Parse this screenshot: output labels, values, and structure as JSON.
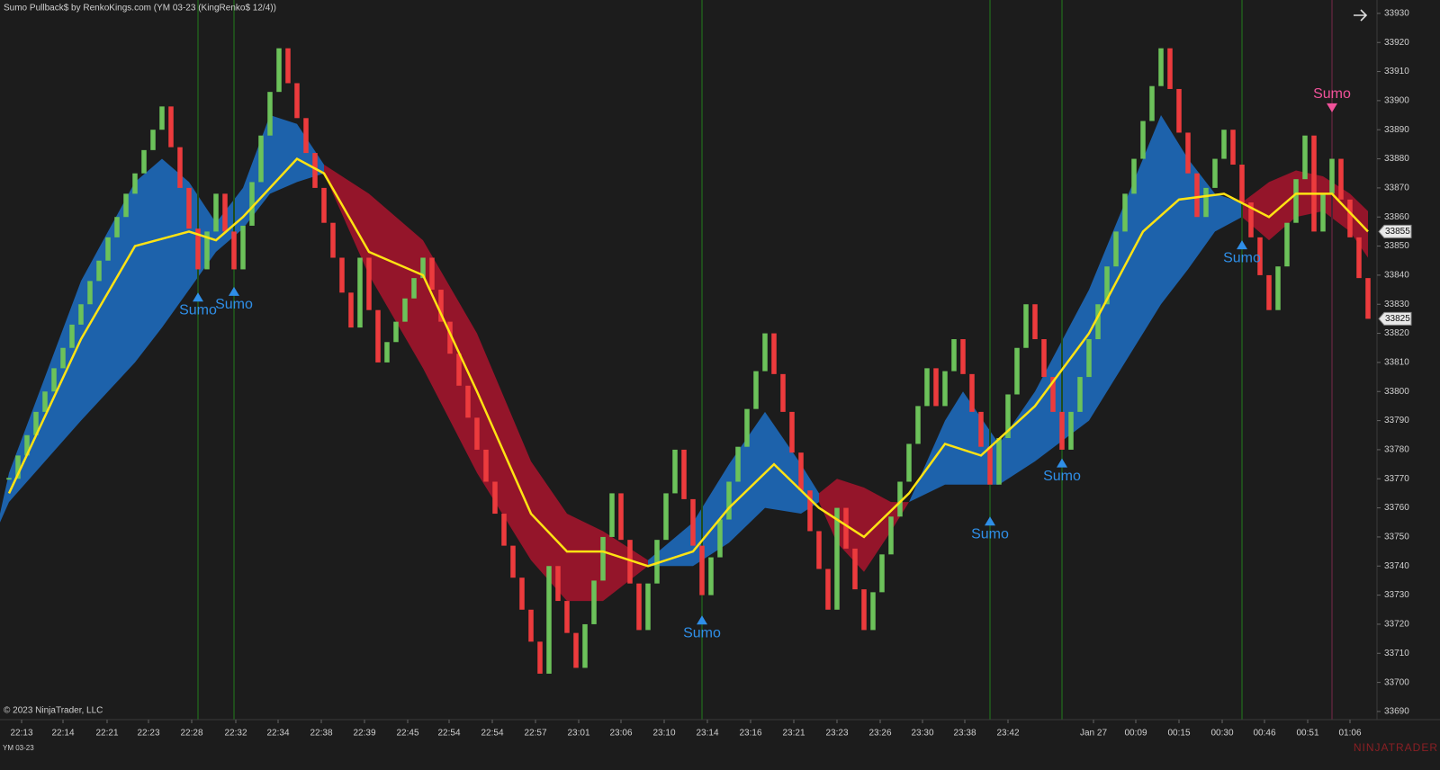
{
  "chart_data": {
    "type": "renko",
    "title": "Sumo Pullback$ by RenkoKings.com (YM 03-23 (KingRenko$ 12/4))",
    "copyright": "© 2023 NinjaTrader, LLC",
    "instrument": "YM 03-23",
    "brand": "NINJATRADER",
    "up_color": "#6cc25a",
    "down_color": "#ec3b3d",
    "xlim": [
      -1,
      152
    ],
    "ylim": [
      33687.2,
      33934.6
    ],
    "yticks": [
      33690,
      33700,
      33710,
      33720,
      33730,
      33740,
      33750,
      33760,
      33770,
      33780,
      33790,
      33800,
      33810,
      33820,
      33830,
      33840,
      33850,
      33860,
      33870,
      33880,
      33890,
      33900,
      33910,
      33920,
      33930
    ],
    "xticks": [
      {
        "value": 1.4,
        "label": "22:13"
      },
      {
        "value": 6,
        "label": "22:14"
      },
      {
        "value": 10.9,
        "label": "22:21"
      },
      {
        "value": 15.5,
        "label": "22:23"
      },
      {
        "value": 20.3,
        "label": "22:28"
      },
      {
        "value": 25.2,
        "label": "22:32"
      },
      {
        "value": 29.9,
        "label": "22:34"
      },
      {
        "value": 34.7,
        "label": "22:38"
      },
      {
        "value": 39.5,
        "label": "22:39"
      },
      {
        "value": 44.3,
        "label": "22:45"
      },
      {
        "value": 48.9,
        "label": "22:54"
      },
      {
        "value": 53.7,
        "label": "22:54"
      },
      {
        "value": 58.5,
        "label": "22:57"
      },
      {
        "value": 63.3,
        "label": "23:01"
      },
      {
        "value": 68,
        "label": "23:06"
      },
      {
        "value": 72.8,
        "label": "23:10"
      },
      {
        "value": 77.6,
        "label": "23:14"
      },
      {
        "value": 82.4,
        "label": "23:16"
      },
      {
        "value": 87.2,
        "label": "23:21"
      },
      {
        "value": 92,
        "label": "23:23"
      },
      {
        "value": 96.8,
        "label": "23:26"
      },
      {
        "value": 101.5,
        "label": "23:30"
      },
      {
        "value": 106.2,
        "label": "23:38"
      },
      {
        "value": 111,
        "label": "23:42"
      },
      {
        "value": 120.5,
        "label": "Jan 27"
      },
      {
        "value": 125.2,
        "label": "00:09"
      },
      {
        "value": 130,
        "label": "00:15"
      },
      {
        "value": 134.8,
        "label": "00:30"
      },
      {
        "value": 139.5,
        "label": "00:46"
      },
      {
        "value": 144.3,
        "label": "00:51"
      },
      {
        "value": 149,
        "label": "01:06"
      }
    ],
    "close": [
      33770,
      33778,
      33785,
      33793,
      33800,
      33808,
      33815,
      33823,
      33830,
      33838,
      33845,
      33853,
      33860,
      33868,
      33875,
      33883,
      33890,
      33898,
      33884,
      33870,
      33856,
      33842,
      33855,
      33868,
      33855,
      33842,
      33857,
      33872,
      33888,
      33903,
      33918,
      33906,
      33894,
      33882,
      33870,
      33858,
      33846,
      33834,
      33822,
      33846,
      33828,
      33810,
      33817,
      33824,
      33832,
      33839,
      33846,
      33835,
      33824,
      33813,
      33802,
      33791,
      33780,
      33769,
      33758,
      33747,
      33736,
      33725,
      33714,
      33703,
      33740,
      33728,
      33717,
      33705,
      33720,
      33735,
      33750,
      33765,
      33749,
      33734,
      33718,
      33734,
      33749,
      33765,
      33780,
      33763,
      33747,
      33730,
      33743,
      33756,
      33769,
      33781,
      33794,
      33807,
      33820,
      33806,
      33793,
      33779,
      33766,
      33752,
      33739,
      33725,
      33760,
      33746,
      33732,
      33718,
      33731,
      33744,
      33757,
      33769,
      33782,
      33795,
      33808,
      33795,
      33807,
      33818,
      33806,
      33793,
      33781,
      33768,
      33784,
      33799,
      33815,
      33830,
      33818,
      33805,
      33793,
      33780,
      33793,
      33805,
      33818,
      33830,
      33843,
      33855,
      33868,
      33880,
      33893,
      33905,
      33918,
      33904,
      33889,
      33875,
      33860,
      33870,
      33880,
      33890,
      33878,
      33865,
      33853,
      33840,
      33828,
      33843,
      33858,
      33873,
      33888,
      33855,
      33868,
      33880,
      33866,
      33853,
      33839,
      33825
    ],
    "ma": {
      "color": "#ffe313",
      "x": [
        0,
        8,
        14,
        20,
        23,
        26,
        32,
        35,
        40,
        46,
        52,
        58,
        62,
        66,
        71,
        76,
        80,
        85,
        90,
        95,
        100,
        104,
        108,
        114,
        120,
        126,
        130,
        135,
        140,
        143,
        147,
        151
      ],
      "values": [
        33765,
        33818,
        33850,
        33855,
        33852,
        33860,
        33880,
        33875,
        33848,
        33840,
        33800,
        33758,
        33745,
        33745,
        33740,
        33745,
        33760,
        33775,
        33760,
        33750,
        33765,
        33782,
        33778,
        33795,
        33820,
        33855,
        33866,
        33868,
        33860,
        33868,
        33868,
        33855
      ]
    },
    "bands": [
      {
        "color": "#1d62ab",
        "x": [
          -1,
          0,
          8,
          14,
          17,
          20,
          23,
          26,
          29,
          32,
          35
        ],
        "upper": [
          33758,
          33772,
          33838,
          33872,
          33880,
          33872,
          33858,
          33870,
          33895,
          33892,
          33878
        ],
        "lower": [
          33755,
          33762,
          33790,
          33810,
          33822,
          33835,
          33848,
          33856,
          33868,
          33872,
          33875
        ]
      },
      {
        "color": "#94152a",
        "x": [
          35,
          40,
          46,
          52,
          58,
          62,
          66,
          71
        ],
        "upper": [
          33878,
          33868,
          33852,
          33820,
          33776,
          33758,
          33752,
          33742
        ],
        "lower": [
          33875,
          33840,
          33808,
          33772,
          33742,
          33728,
          33728,
          33740
        ]
      },
      {
        "color": "#1d62ab",
        "x": [
          71,
          76,
          80,
          84,
          88,
          90
        ],
        "upper": [
          33742,
          33755,
          33775,
          33793,
          33775,
          33765
        ],
        "lower": [
          33740,
          33740,
          33748,
          33760,
          33758,
          33762
        ]
      },
      {
        "color": "#94152a",
        "x": [
          90,
          92,
          95,
          98,
          100
        ],
        "upper": [
          33765,
          33770,
          33767,
          33762,
          33762
        ],
        "lower": [
          33762,
          33748,
          33738,
          33752,
          33762
        ]
      },
      {
        "color": "#1d62ab",
        "x": [
          100,
          104,
          106,
          110,
          114,
          120,
          126,
          128,
          131,
          134,
          137
        ],
        "upper": [
          33762,
          33790,
          33800,
          33782,
          33800,
          33835,
          33880,
          33895,
          33880,
          33868,
          33865
        ],
        "lower": [
          33762,
          33768,
          33768,
          33768,
          33776,
          33790,
          33820,
          33830,
          33842,
          33855,
          33860
        ]
      },
      {
        "color": "#94152a",
        "x": [
          137,
          140,
          143,
          146,
          149,
          151
        ],
        "upper": [
          33865,
          33872,
          33876,
          33874,
          33868,
          33862
        ],
        "lower": [
          33860,
          33852,
          33860,
          33862,
          33855,
          33846
        ]
      }
    ],
    "signals": [
      {
        "x": 21,
        "price": 33834,
        "label": "Sumo",
        "direction": "up",
        "color": "#2f8fe8",
        "line_color": "#1f4d1c"
      },
      {
        "x": 25,
        "price": 33836,
        "label": "Sumo",
        "direction": "up",
        "color": "#2f8fe8",
        "line_color": "#1f4d1c"
      },
      {
        "x": 77,
        "price": 33723,
        "label": "Sumo",
        "direction": "up",
        "color": "#2f8fe8",
        "line_color": "#1f4d1c"
      },
      {
        "x": 109,
        "price": 33757,
        "label": "Sumo",
        "direction": "up",
        "color": "#2f8fe8",
        "line_color": "#1f4d1c"
      },
      {
        "x": 117,
        "price": 33777,
        "label": "Sumo",
        "direction": "up",
        "color": "#2f8fe8",
        "line_color": "#1f4d1c"
      },
      {
        "x": 137,
        "price": 33852,
        "label": "Sumo",
        "direction": "up",
        "color": "#2f8fe8",
        "line_color": "#1f4d1c"
      },
      {
        "x": 147,
        "price": 33896,
        "label": "Sumo",
        "direction": "down",
        "color": "#f0529a",
        "line_color": "#4a2233"
      }
    ],
    "price_markers": [
      33855,
      33825
    ]
  }
}
